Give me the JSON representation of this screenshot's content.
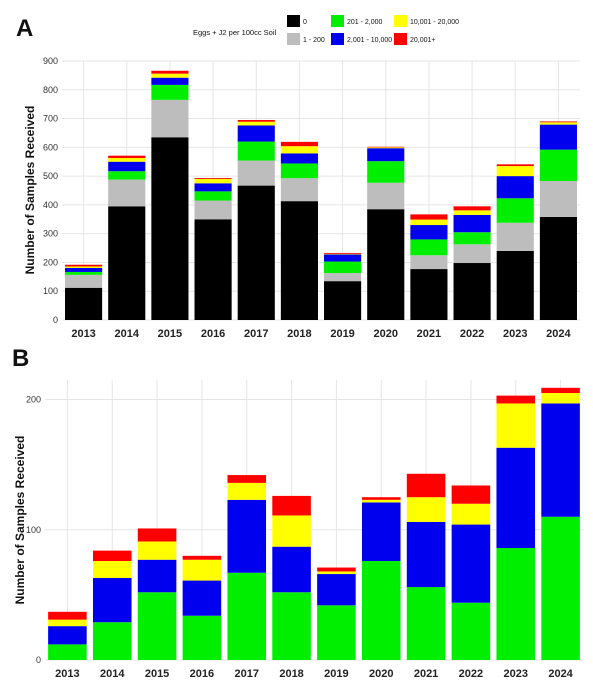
{
  "legend": {
    "title": "Eggs + J2 per 100cc Soil",
    "entries": [
      {
        "label": "0",
        "color": "#000000"
      },
      {
        "label": "1 - 200",
        "color": "#bdbdbd"
      },
      {
        "label": "201 - 2,000",
        "color": "#00ee00"
      },
      {
        "label": "2,001 - 10,000",
        "color": "#0000ee"
      },
      {
        "label": "10,001 - 20,000",
        "color": "#ffff00"
      },
      {
        "label": "20,001+",
        "color": "#ff0000"
      }
    ]
  },
  "chart_data": [
    {
      "panel": "A",
      "type": "bar",
      "stacked": true,
      "ylabel": "Number of Samples Received",
      "xlabel": "",
      "ylim": [
        0,
        900
      ],
      "yticks": [
        0,
        100,
        200,
        300,
        400,
        500,
        600,
        700,
        800,
        900
      ],
      "grid": true,
      "legend_position": "top-right",
      "categories": [
        "2013",
        "2014",
        "2015",
        "2016",
        "2017",
        "2018",
        "2019",
        "2020",
        "2021",
        "2022",
        "2023",
        "2024"
      ],
      "series": [
        {
          "name": "0",
          "color": "#000000",
          "values": [
            112,
            395,
            635,
            350,
            467,
            413,
            135,
            385,
            177,
            198,
            240,
            358
          ]
        },
        {
          "name": "1 - 200",
          "color": "#bdbdbd",
          "values": [
            45,
            93,
            130,
            65,
            87,
            80,
            28,
            92,
            48,
            65,
            98,
            125
          ]
        },
        {
          "name": "201 - 2,000",
          "color": "#00ee00",
          "values": [
            10,
            29,
            52,
            32,
            66,
            51,
            40,
            75,
            55,
            42,
            85,
            109
          ]
        },
        {
          "name": "2,001 - 10,000",
          "color": "#0000ee",
          "values": [
            14,
            33,
            25,
            28,
            56,
            35,
            25,
            45,
            50,
            60,
            77,
            87
          ]
        },
        {
          "name": "10,001 - 20,000",
          "color": "#ffff00",
          "values": [
            5,
            13,
            14,
            15,
            13,
            25,
            2,
            3,
            19,
            16,
            35,
            8
          ]
        },
        {
          "name": "20,001+",
          "color": "#ff0000",
          "values": [
            6,
            8,
            10,
            3,
            6,
            15,
            3,
            2,
            18,
            14,
            6,
            3
          ]
        }
      ]
    },
    {
      "panel": "B",
      "type": "bar",
      "stacked": true,
      "ylabel": "Number of Samples Received",
      "xlabel": "",
      "ylim": [
        0,
        215
      ],
      "yticks": [
        0,
        100,
        200
      ],
      "grid": true,
      "categories": [
        "2013",
        "2014",
        "2015",
        "2016",
        "2017",
        "2018",
        "2019",
        "2020",
        "2021",
        "2022",
        "2023",
        "2024"
      ],
      "series": [
        {
          "name": "201 - 2,000",
          "color": "#00ee00",
          "values": [
            12,
            29,
            52,
            34,
            67,
            52,
            42,
            76,
            56,
            44,
            86,
            110
          ]
        },
        {
          "name": "2,001 - 10,000",
          "color": "#0000ee",
          "values": [
            14,
            34,
            25,
            27,
            56,
            35,
            24,
            45,
            50,
            60,
            77,
            87
          ]
        },
        {
          "name": "10,001 - 20,000",
          "color": "#ffff00",
          "values": [
            5,
            13,
            14,
            16,
            13,
            24,
            2,
            2,
            19,
            16,
            34,
            8
          ]
        },
        {
          "name": "20,001+",
          "color": "#ff0000",
          "values": [
            6,
            8,
            10,
            3,
            6,
            15,
            3,
            2,
            18,
            14,
            6,
            4
          ]
        }
      ]
    }
  ]
}
